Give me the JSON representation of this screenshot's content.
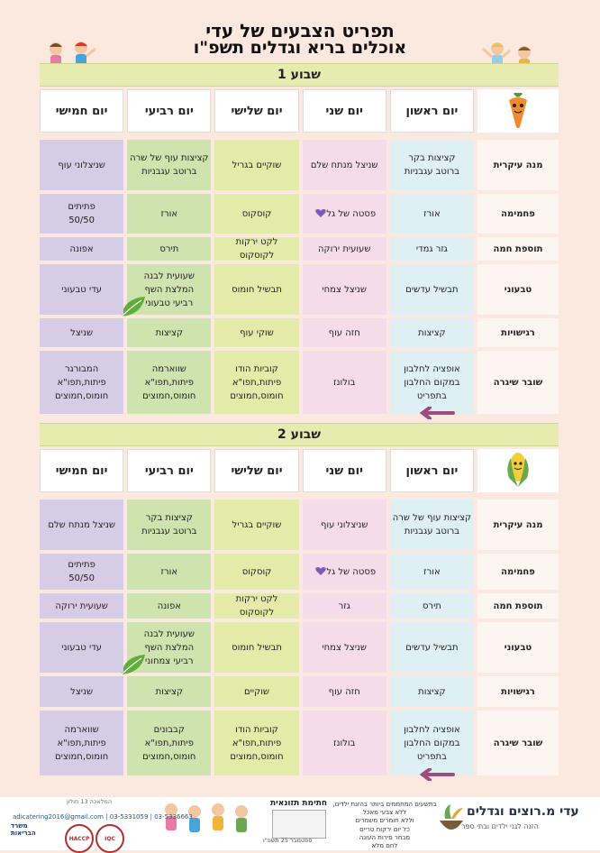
{
  "title": {
    "line1": "תפריט הצבעים של עדי",
    "line2": "אוכלים בריא וגדלים  תשפ\"ו"
  },
  "days": [
    "יום ראשון",
    "יום שני",
    "יום שלישי",
    "יום רביעי",
    "יום חמישי"
  ],
  "weeks": [
    {
      "label": "שבוע 1",
      "mascot": "carrot-icon",
      "rows": [
        {
          "label": "מנה עיקרית",
          "cells": [
            "קציצות בקר\nברוטב עגבניות",
            "שניצל מנתח שלם",
            "שוקיים בגריל",
            "קציצות עוף של שרה\nברוטב עגבניות",
            "שניצלוני עוף"
          ]
        },
        {
          "label": "פחמימה",
          "cells": [
            "אורז",
            "פסטה של גל",
            "קוסקוס",
            "אורז",
            "פתיתים\n50/50"
          ]
        },
        {
          "label": "תוספת חמה",
          "cells": [
            "גזר גמדי",
            "שעועית ירוקה",
            "לקט ירקות\nלקוסקוס",
            "תירס",
            "אפונה"
          ]
        },
        {
          "label": "טבעוני",
          "cells": [
            "תבשיל עדשים",
            "שניצל צמחי",
            "תבשיל חומוס",
            "שעועית לבנה\nהמלצת השף\nרביעי טבעוני",
            "עדי טבעוני"
          ]
        },
        {
          "label": "רגישויות",
          "cells": [
            "קציצות",
            "חזה עוף",
            "שוקי עוף",
            "קציצות",
            "שניצל"
          ]
        },
        {
          "label": "שובר שיגרה",
          "cells": [
            "אופציה לחלבון\nבמקום החלבון\nבתפריט",
            "בולונז",
            "קוביות הודו\nפיתות,תפו\"א\nחומוס,חמוצים",
            "שווארמה\nפיתות,תפו\"א\nחומוס,חמוצים",
            "המבורגר\nפיתות,תפו\"א\nחומוס,חמוצים"
          ]
        }
      ]
    },
    {
      "label": "שבוע 2",
      "mascot": "corn-icon",
      "rows": [
        {
          "label": "מנה עיקרית",
          "cells": [
            "קציצות עוף של שרה\nברוטב עגבניות",
            "שניצלוני עוף",
            "שוקיים בגריל",
            "קציצות בקר\nברוטב עגבניות",
            "שניצל מנתח שלם"
          ]
        },
        {
          "label": "פחמימה",
          "cells": [
            "אורז",
            "פסטה של גל",
            "קוסקוס",
            "אורז",
            "פתיתים\n50/50"
          ]
        },
        {
          "label": "תוספת חמה",
          "cells": [
            "תירס",
            "גזר",
            "לקט ירקות\nלקוסקוס",
            "אפונה",
            "שעועית ירוקה"
          ]
        },
        {
          "label": "טבעוני",
          "cells": [
            "תבשיל עדשים",
            "שניצל צמחי",
            "תבשיל חומוס",
            "שעועית לבנה\nהמלצת השף\nרביעי צמחוני",
            "עדי טבעוני"
          ]
        },
        {
          "label": "רגישויות",
          "cells": [
            "קציצות",
            "חזה עוף",
            "שוקיים",
            "קציצות",
            "שניצל"
          ]
        },
        {
          "label": "שובר שיגרה",
          "cells": [
            "אופציה לחלבון\nבמקום החלבון\nבתפריט",
            "בולונז",
            "קוביות הודו\nפיתות,תפו\"א\nחומוס,חמוצים",
            "קבבונים\nפיתות,תפו\"א\nחומוס,חמוצים",
            "שווארמה\nפיתות,תפו\"א\nחומוס,חמוצים"
          ]
        }
      ]
    }
  ],
  "colors": {
    "sunday": "#dff0f5",
    "monday": "#f6dcea",
    "tuesday": "#e2eca8",
    "wednesday": "#cfe3ae",
    "thursday": "#d5cde6",
    "background": "#fbe9df",
    "week_bar": "#e6ecb0",
    "arrow": "#9c4d7e",
    "leaf": "#5fae3c",
    "heart": "#7a5bb5"
  },
  "footer": {
    "logo_name": "עדי מ.רוצים וגדלים",
    "logo_tagline": "הזנה לגני ילדים ובתי ספר",
    "note": "בתשעים המחממים ביותר בהזנת ילדים,\nללא צבעי מאכל\nוללא חומרים משמרים\nכל יום ירקות טריים\nמבחר פירות העונה\nלחם מלא",
    "signature_title": "חתימת תזונאית",
    "signature_date": "ספטמבר 25 תשפ\"ו",
    "contact_line1": "המלאכה 13 חולון",
    "contact_line2": "adicatering2016@gmail.com | 03-5331059 | 03-5336663",
    "ministry": "משרד\nהבריאות",
    "badge_haccp": "HACCP",
    "badge_iso": "IQC"
  }
}
